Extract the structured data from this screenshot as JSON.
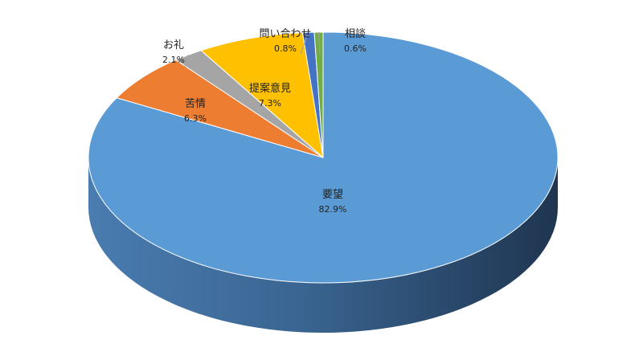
{
  "chart_data": {
    "type": "pie",
    "style": "3d",
    "title": "",
    "slices": [
      {
        "label": "要望",
        "value": 82.9,
        "display": "82.9%",
        "color": "#5b9bd5"
      },
      {
        "label": "苦情",
        "value": 6.3,
        "display": "6.3%",
        "color": "#ed7d31"
      },
      {
        "label": "お礼",
        "value": 2.1,
        "display": "2.1%",
        "color": "#a5a5a5"
      },
      {
        "label": "提案意見",
        "value": 7.3,
        "display": "7.3%",
        "color": "#ffc000"
      },
      {
        "label": "問い合わせ",
        "value": 0.8,
        "display": "0.8%",
        "color": "#4472c4"
      },
      {
        "label": "相談",
        "value": 0.6,
        "display": "0.6%",
        "color": "#70ad47"
      }
    ],
    "start_angle_deg": 90,
    "direction": "clockwise",
    "legend": "none",
    "data_labels": true
  }
}
